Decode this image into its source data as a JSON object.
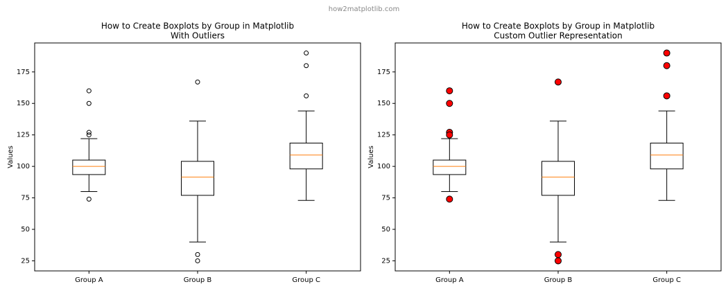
{
  "watermark": "how2matplotlib.com",
  "chart_data": [
    {
      "type": "box",
      "title": "How to Create Boxplots by Group in Matplotlib",
      "subtitle": "With Outliers",
      "ylabel": "Values",
      "categories": [
        "Group A",
        "Group B",
        "Group C"
      ],
      "boxes": [
        {
          "whislo": 80,
          "q1": 93.5,
          "med": 100,
          "q3": 105,
          "whishi": 122,
          "fliers": [
            160,
            150,
            127,
            125,
            74
          ]
        },
        {
          "whislo": 40,
          "q1": 77,
          "med": 91.5,
          "q3": 104,
          "whishi": 136,
          "fliers": [
            167,
            30,
            25
          ]
        },
        {
          "whislo": 73,
          "q1": 98,
          "med": 109,
          "q3": 118.5,
          "whishi": 144,
          "fliers": [
            190,
            180,
            156
          ]
        }
      ],
      "box_color": "#000000",
      "median_color": "#ff7f0e",
      "flier_fill": "none",
      "flier_edge": "#000000",
      "flier_size": 3,
      "ylim": [
        17,
        198
      ],
      "yticks": [
        25,
        50,
        75,
        100,
        125,
        150,
        175
      ],
      "grid": false
    },
    {
      "type": "box",
      "title": "How to Create Boxplots by Group in Matplotlib",
      "subtitle": "Custom Outlier Representation",
      "ylabel": "Values",
      "categories": [
        "Group A",
        "Group B",
        "Group C"
      ],
      "boxes": [
        {
          "whislo": 80,
          "q1": 93.5,
          "med": 100,
          "q3": 105,
          "whishi": 122,
          "fliers": [
            160,
            150,
            127,
            125,
            74
          ]
        },
        {
          "whislo": 40,
          "q1": 77,
          "med": 91.5,
          "q3": 104,
          "whishi": 136,
          "fliers": [
            167,
            30,
            25
          ]
        },
        {
          "whislo": 73,
          "q1": 98,
          "med": 109,
          "q3": 118.5,
          "whishi": 144,
          "fliers": [
            190,
            180,
            156
          ]
        }
      ],
      "box_color": "#000000",
      "median_color": "#ff7f0e",
      "flier_fill": "#ff0000",
      "flier_edge": "#000000",
      "flier_size": 4.5,
      "ylim": [
        17,
        198
      ],
      "yticks": [
        25,
        50,
        75,
        100,
        125,
        150,
        175
      ],
      "grid": false
    }
  ]
}
